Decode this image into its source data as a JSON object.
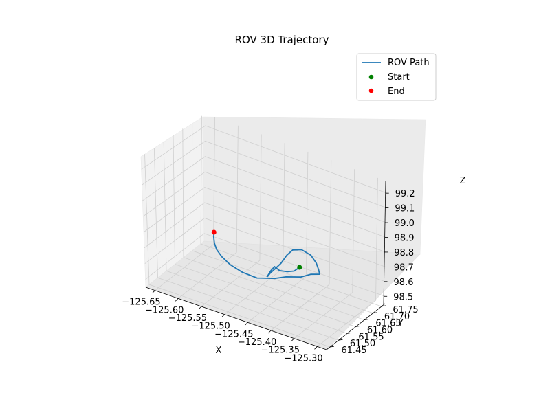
{
  "chart_data": {
    "type": "line3d",
    "title": "ROV 3D Trajectory",
    "xlabel": "X",
    "ylabel": "Y",
    "zlabel": "Z",
    "x_ticks": [
      "−125.65",
      "−125.60",
      "−125.55",
      "−125.50",
      "−125.45",
      "−125.40",
      "−125.35",
      "−125.30"
    ],
    "y_ticks": [
      "61.45",
      "61.50",
      "61.55",
      "61.60",
      "61.65",
      "61.70",
      "61.75"
    ],
    "z_ticks": [
      "98.5",
      "98.6",
      "98.7",
      "98.8",
      "98.9",
      "99.0",
      "99.1",
      "99.2"
    ],
    "xlim": [
      -125.67,
      -125.28
    ],
    "ylim": [
      61.43,
      61.77
    ],
    "zlim": [
      98.45,
      99.28
    ],
    "grid": true,
    "legend_placement": "top-right",
    "legend": [
      {
        "label": "ROV Path",
        "kind": "line",
        "color": "#1f77b4"
      },
      {
        "label": "Start",
        "kind": "marker",
        "color": "#008000"
      },
      {
        "label": "End",
        "kind": "marker",
        "color": "#ff0000"
      }
    ],
    "series": [
      {
        "name": "ROV Path",
        "color": "#1f77b4",
        "x": [
          -125.405,
          -125.413,
          -125.425,
          -125.438,
          -125.446,
          -125.451,
          -125.454,
          -125.455,
          -125.452,
          -125.447,
          -125.438,
          -125.428,
          -125.419,
          -125.41,
          -125.395,
          -125.378,
          -125.368,
          -125.364,
          -125.362,
          -125.378,
          -125.396,
          -125.424,
          -125.445,
          -125.478,
          -125.506,
          -125.53,
          -125.547,
          -125.558,
          -125.563,
          -125.565,
          -125.565
        ],
        "y": [
          61.612,
          61.602,
          61.594,
          61.586,
          61.578,
          61.57,
          61.563,
          61.558,
          61.554,
          61.556,
          61.56,
          61.568,
          61.578,
          61.588,
          61.598,
          61.606,
          61.61,
          61.612,
          61.613,
          61.604,
          61.596,
          61.585,
          61.576,
          61.562,
          61.553,
          61.547,
          61.545,
          61.545,
          61.546,
          61.548,
          61.55
        ],
        "z": [
          98.7,
          98.675,
          98.665,
          98.665,
          98.69,
          98.665,
          98.64,
          98.635,
          98.64,
          98.665,
          98.7,
          98.74,
          98.795,
          98.83,
          98.84,
          98.815,
          98.77,
          98.73,
          98.7,
          98.69,
          98.66,
          98.64,
          98.615,
          98.595,
          98.61,
          98.64,
          98.675,
          98.71,
          98.745,
          98.78,
          98.81
        ]
      }
    ],
    "start": {
      "name": "Start",
      "color": "#008000",
      "x": -125.405,
      "y": 61.612,
      "z": 98.7
    },
    "end": {
      "name": "End",
      "color": "#ff0000",
      "x": -125.565,
      "y": 61.55,
      "z": 98.81
    }
  }
}
